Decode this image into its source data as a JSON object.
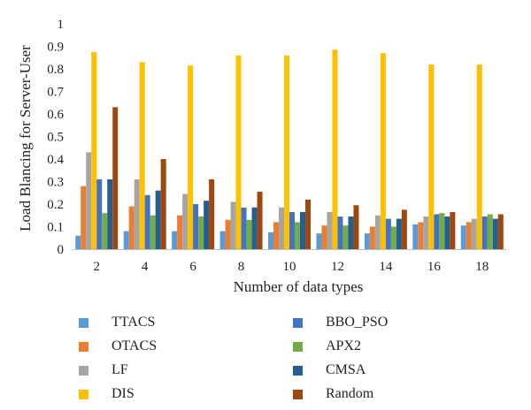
{
  "chart_data": {
    "type": "bar",
    "title": "",
    "xlabel": "Number of data types",
    "ylabel": "Load Blancing for Server-User",
    "ylim": [
      0,
      1
    ],
    "yticks": [
      0,
      0.1,
      0.2,
      0.3,
      0.4,
      0.5,
      0.6,
      0.7,
      0.8,
      0.9,
      1
    ],
    "grid": false,
    "legend_position": "bottom",
    "categories": [
      "2",
      "4",
      "6",
      "8",
      "10",
      "12",
      "14",
      "16",
      "18"
    ],
    "series": [
      {
        "name": "TTACS",
        "color": "#5b9bd5",
        "values": [
          0.06,
          0.08,
          0.08,
          0.08,
          0.075,
          0.07,
          0.07,
          0.11,
          0.105
        ]
      },
      {
        "name": "OTACS",
        "color": "#ed7d31",
        "values": [
          0.28,
          0.19,
          0.15,
          0.13,
          0.12,
          0.105,
          0.1,
          0.12,
          0.12
        ]
      },
      {
        "name": "LF",
        "color": "#a5a5a5",
        "values": [
          0.43,
          0.31,
          0.245,
          0.21,
          0.185,
          0.165,
          0.15,
          0.145,
          0.135
        ]
      },
      {
        "name": "DIS",
        "color": "#ffc000",
        "values": [
          0.875,
          0.83,
          0.815,
          0.86,
          0.86,
          0.885,
          0.87,
          0.82,
          0.82
        ]
      },
      {
        "name": "BBO_PSO",
        "color": "#4472c4",
        "values": [
          0.31,
          0.24,
          0.2,
          0.185,
          0.165,
          0.145,
          0.135,
          0.155,
          0.145
        ]
      },
      {
        "name": "APX2",
        "color": "#70ad47",
        "values": [
          0.16,
          0.15,
          0.145,
          0.13,
          0.12,
          0.105,
          0.1,
          0.16,
          0.155
        ]
      },
      {
        "name": "CMSA",
        "color": "#255e91",
        "values": [
          0.31,
          0.26,
          0.215,
          0.185,
          0.165,
          0.145,
          0.135,
          0.145,
          0.135
        ]
      },
      {
        "name": "Random",
        "color": "#9e480e",
        "values": [
          0.63,
          0.4,
          0.31,
          0.255,
          0.22,
          0.195,
          0.175,
          0.165,
          0.155
        ]
      }
    ]
  }
}
